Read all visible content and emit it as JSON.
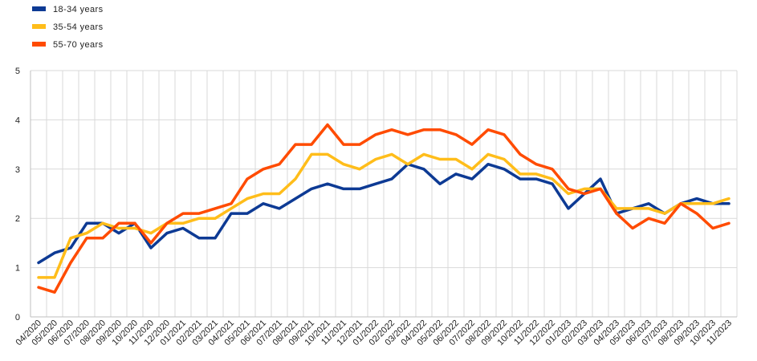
{
  "chart_data": {
    "type": "line",
    "title": "",
    "xlabel": "",
    "ylabel": "",
    "ylim": [
      0,
      5
    ],
    "yticks": [
      0,
      1,
      2,
      3,
      4,
      5
    ],
    "grid": true,
    "legend_position": "top-left",
    "categories": [
      "04/2020",
      "05/2020",
      "06/2020",
      "07/2020",
      "08/2020",
      "09/2020",
      "10/2020",
      "11/2020",
      "12/2020",
      "01/2021",
      "02/2021",
      "03/2021",
      "04/2021",
      "05/2021",
      "06/2021",
      "07/2021",
      "08/2021",
      "09/2021",
      "10/2021",
      "11/2021",
      "12/2021",
      "01/2022",
      "02/2022",
      "03/2022",
      "04/2022",
      "05/2022",
      "06/2022",
      "07/2022",
      "08/2022",
      "09/2022",
      "10/2022",
      "11/2022",
      "12/2022",
      "01/2023",
      "02/2023",
      "03/2023",
      "04/2023",
      "05/2023",
      "06/2023",
      "07/2023",
      "08/2023",
      "09/2023",
      "10/2023",
      "11/2023"
    ],
    "series": [
      {
        "name": "18-34 years",
        "color": "#0d3a94",
        "values": [
          1.1,
          1.3,
          1.4,
          1.9,
          1.9,
          1.7,
          1.9,
          1.4,
          1.7,
          1.8,
          1.6,
          1.6,
          2.1,
          2.1,
          2.3,
          2.2,
          2.4,
          2.6,
          2.7,
          2.6,
          2.6,
          2.7,
          2.8,
          3.1,
          3.0,
          2.7,
          2.9,
          2.8,
          3.1,
          3.0,
          2.8,
          2.8,
          2.7,
          2.2,
          2.5,
          2.8,
          2.1,
          2.2,
          2.3,
          2.1,
          2.3,
          2.4,
          2.3,
          2.3
        ]
      },
      {
        "name": "35-54 years",
        "color": "#ffbd1a",
        "values": [
          0.8,
          0.8,
          1.6,
          1.7,
          1.9,
          1.8,
          1.8,
          1.7,
          1.9,
          1.9,
          2.0,
          2.0,
          2.2,
          2.4,
          2.5,
          2.5,
          2.8,
          3.3,
          3.3,
          3.1,
          3.0,
          3.2,
          3.3,
          3.1,
          3.3,
          3.2,
          3.2,
          3.0,
          3.3,
          3.2,
          2.9,
          2.9,
          2.8,
          2.5,
          2.6,
          2.6,
          2.2,
          2.2,
          2.2,
          2.1,
          2.3,
          2.3,
          2.3,
          2.4
        ]
      },
      {
        "name": "55-70 years",
        "color": "#ff4b00",
        "values": [
          0.6,
          0.5,
          1.1,
          1.6,
          1.6,
          1.9,
          1.9,
          1.5,
          1.9,
          2.1,
          2.1,
          2.2,
          2.3,
          2.8,
          3.0,
          3.1,
          3.5,
          3.5,
          3.9,
          3.5,
          3.5,
          3.7,
          3.8,
          3.7,
          3.8,
          3.8,
          3.7,
          3.5,
          3.8,
          3.7,
          3.3,
          3.1,
          3.0,
          2.6,
          2.5,
          2.6,
          2.1,
          1.8,
          2.0,
          1.9,
          2.3,
          2.1,
          1.8,
          1.9
        ]
      }
    ]
  }
}
